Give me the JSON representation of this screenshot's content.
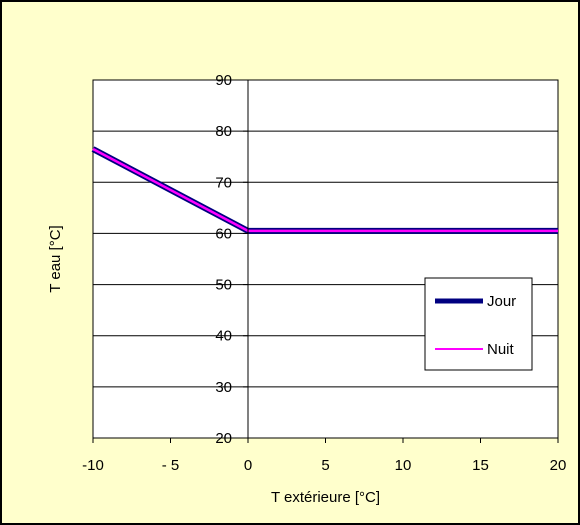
{
  "chart_data": {
    "type": "line",
    "xlabel": "T extérieure [°C]",
    "ylabel": "T eau [°C]",
    "xlim": [
      -10,
      20
    ],
    "ylim": [
      20,
      90
    ],
    "xticks": [
      -10,
      -5,
      0,
      5,
      10,
      15,
      20
    ],
    "yticks": [
      20,
      30,
      40,
      50,
      60,
      70,
      80,
      90
    ],
    "xtick_labels": [
      "-10",
      "- 5",
      "0",
      "5",
      "10",
      "15",
      "20"
    ],
    "ytick_labels": [
      "20",
      "30",
      "40",
      "50",
      "60",
      "70",
      "80",
      "90"
    ],
    "grid": "horizontal",
    "legend_position": "right",
    "series": [
      {
        "name": "Jour",
        "color": "#000080",
        "x": [
          -10,
          0,
          20
        ],
        "y": [
          76.5,
          60.5,
          60.5
        ]
      },
      {
        "name": "Nuit",
        "color": "#ff00ff",
        "x": [
          -10,
          0,
          20
        ],
        "y": [
          76.5,
          60.5,
          60.5
        ]
      }
    ]
  },
  "colors": {
    "background": "#ffffcc",
    "plot_area": "#ffffff",
    "grid": "#000000"
  }
}
